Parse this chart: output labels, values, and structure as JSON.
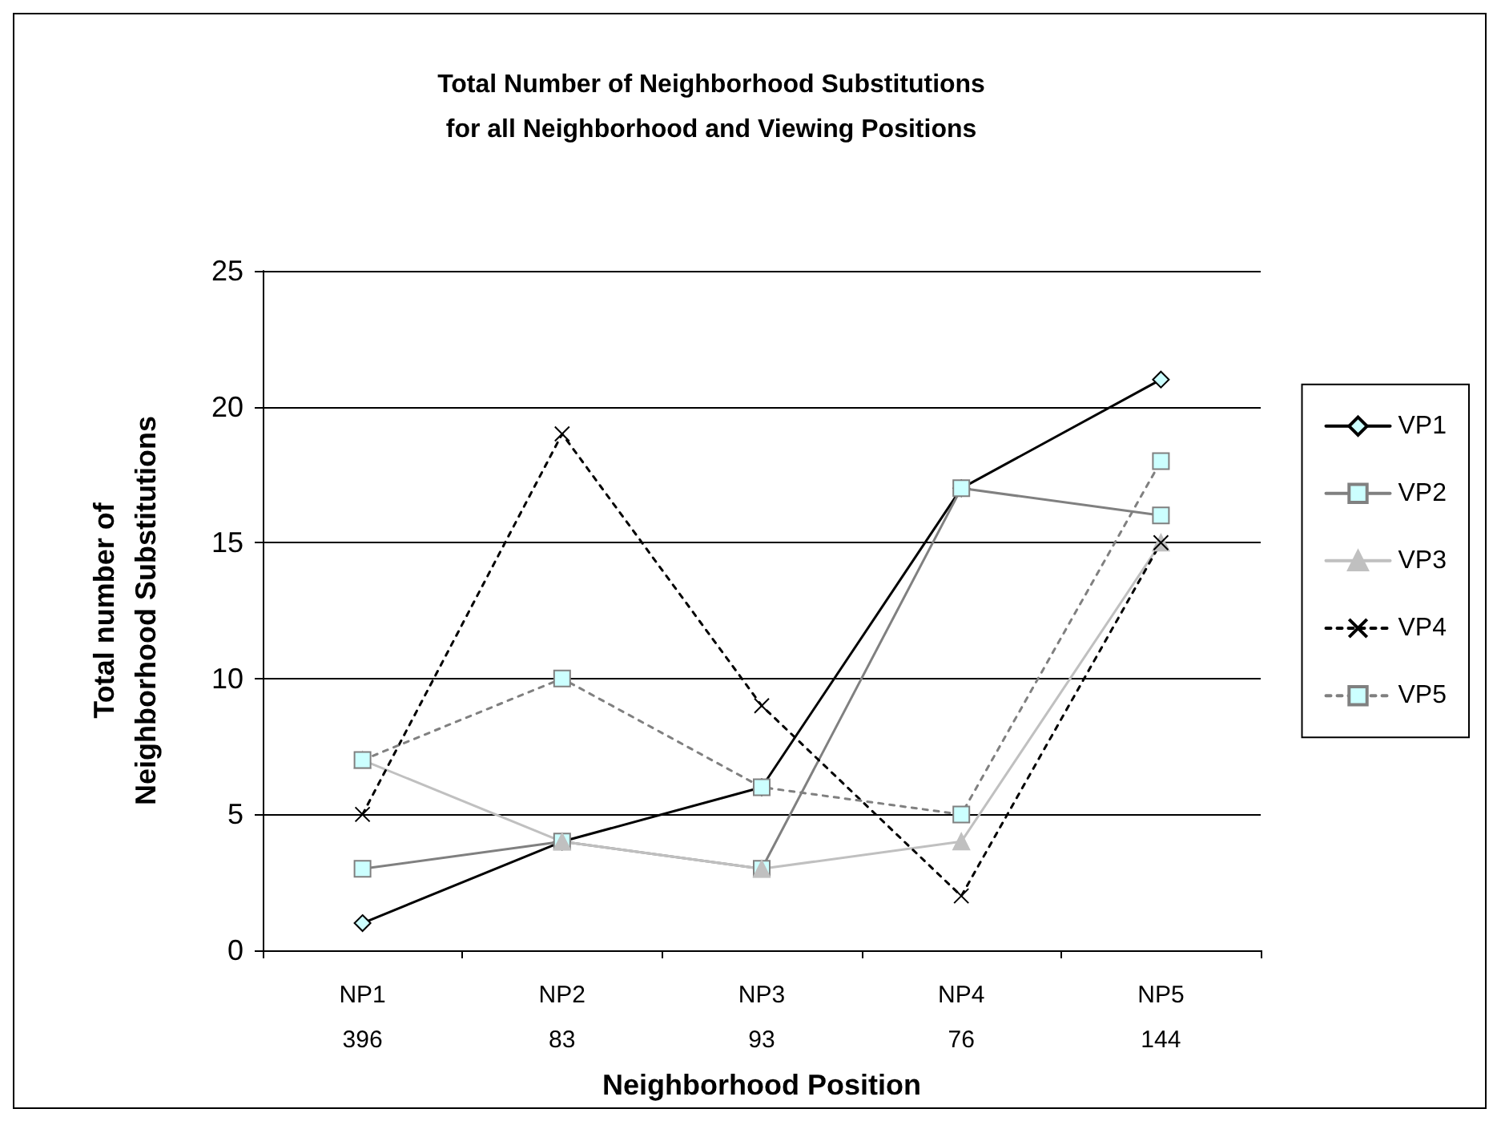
{
  "chart_data": {
    "type": "line",
    "title": "Total Number of Neighborhood Substitutions for all Neighborhood and Viewing Positions",
    "xlabel": "Neighborhood Position",
    "ylabel": "Total number of Neighborhood Substitutions",
    "categories": [
      "NP1\n396",
      "NP2\n83",
      "NP3\n93",
      "NP4\n76",
      "NP5\n144"
    ],
    "series": [
      {
        "name": "VP1",
        "color": "#000000",
        "values": [
          1,
          4,
          6,
          17,
          21
        ],
        "marker": "diamond",
        "line_style": "solid"
      },
      {
        "name": "VP2",
        "color": "#808080",
        "values": [
          3,
          4,
          3,
          17,
          16
        ],
        "marker": "square",
        "line_style": "solid"
      },
      {
        "name": "VP3",
        "color": "#c0c0c0",
        "values": [
          7,
          4,
          3,
          4,
          15
        ],
        "marker": "triangle",
        "line_style": "solid"
      },
      {
        "name": "VP4",
        "color": "#000000",
        "values": [
          5,
          19,
          9,
          2,
          15
        ],
        "marker": "cross",
        "line_style": "dotted"
      },
      {
        "name": "VP5",
        "color": "#808080",
        "values": [
          7,
          10,
          6,
          5,
          18
        ],
        "marker": "square",
        "line_style": "dotted"
      }
    ],
    "ylim": [
      0,
      25
    ],
    "yticks": [
      0,
      5,
      10,
      15,
      20,
      25
    ],
    "grid": "y",
    "legend": "right"
  }
}
